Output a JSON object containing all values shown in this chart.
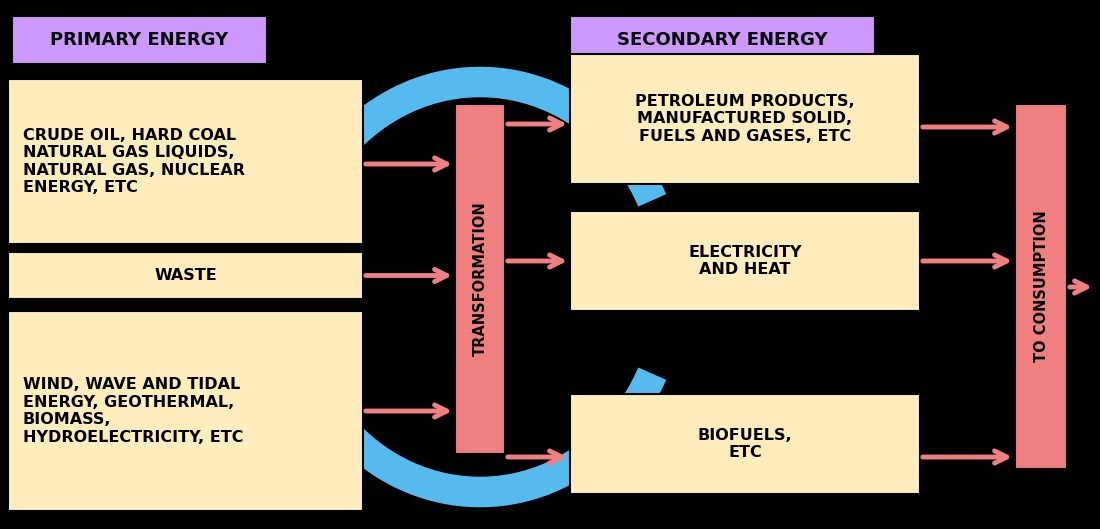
{
  "bg_color": "#000000",
  "box_fill_light": "#FFEEBB",
  "box_fill_pink": "#F08080",
  "box_fill_purple": "#CC99FF",
  "arrow_blue": "#55BBEE",
  "arrow_pink": "#F08080",
  "title_primary": "PRIMARY ENERGY",
  "title_secondary": "SECONDARY ENERGY",
  "box1_text": "CRUDE OIL, HARD COAL\nNATURAL GAS LIQUIDS,\nNATURAL GAS, NUCLEAR\nENERGY, ETC",
  "box2_text": "WASTE",
  "box3_text": "WIND, WAVE AND TIDAL\nENERGY, GEOTHERMAL,\nBIOMASS,\nHYDROELECTRICITY, ETC",
  "box4_text": "PETROLEUM PRODUCTS,\nMANUFACTURED SOLID,\nFUELS AND GASES, ETC",
  "box5_text": "ELECTRICITY\nAND HEAT",
  "box6_text": "BIOFUELS,\nETC",
  "transform_text": "TRANSFORMATION",
  "consumption_text": "TO CONSUMPTION",
  "font_size_box": 11.5,
  "font_size_title": 13,
  "font_size_transform": 10.5
}
